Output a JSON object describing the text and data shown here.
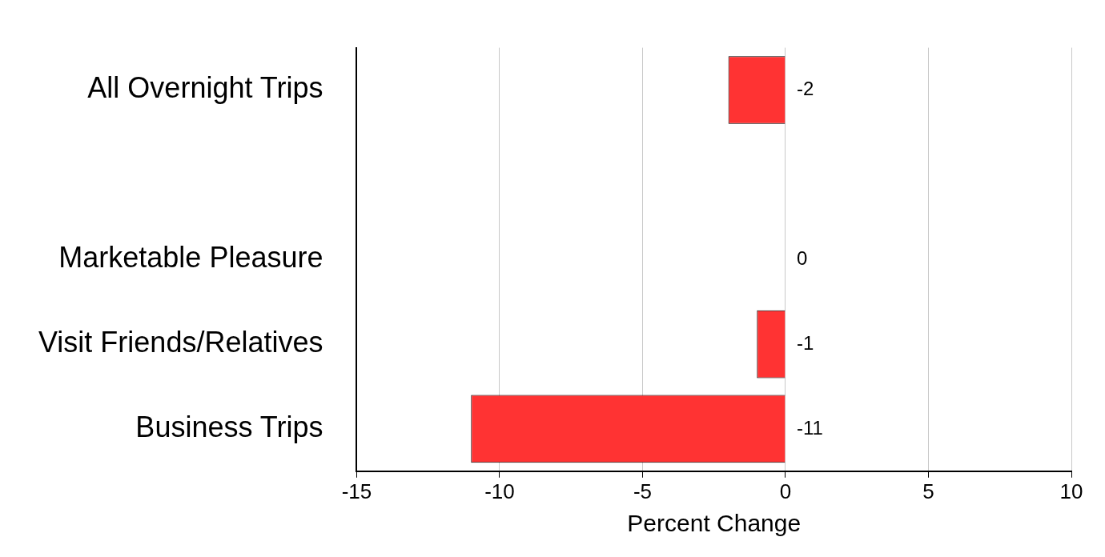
{
  "chart_data": {
    "type": "bar",
    "orientation": "horizontal",
    "xlabel": "Percent Change",
    "categories": [
      "All Overnight Trips",
      null,
      "Marketable Pleasure",
      "Visit Friends/Relatives",
      "Business Trips"
    ],
    "values": [
      -2,
      null,
      0,
      -1,
      -11
    ],
    "color": "#ff3333",
    "xlim": [
      -15,
      10
    ],
    "xticks": [
      -15,
      -10,
      -5,
      0,
      5,
      10
    ],
    "grid": "x",
    "data_labels": true,
    "legend": false
  }
}
